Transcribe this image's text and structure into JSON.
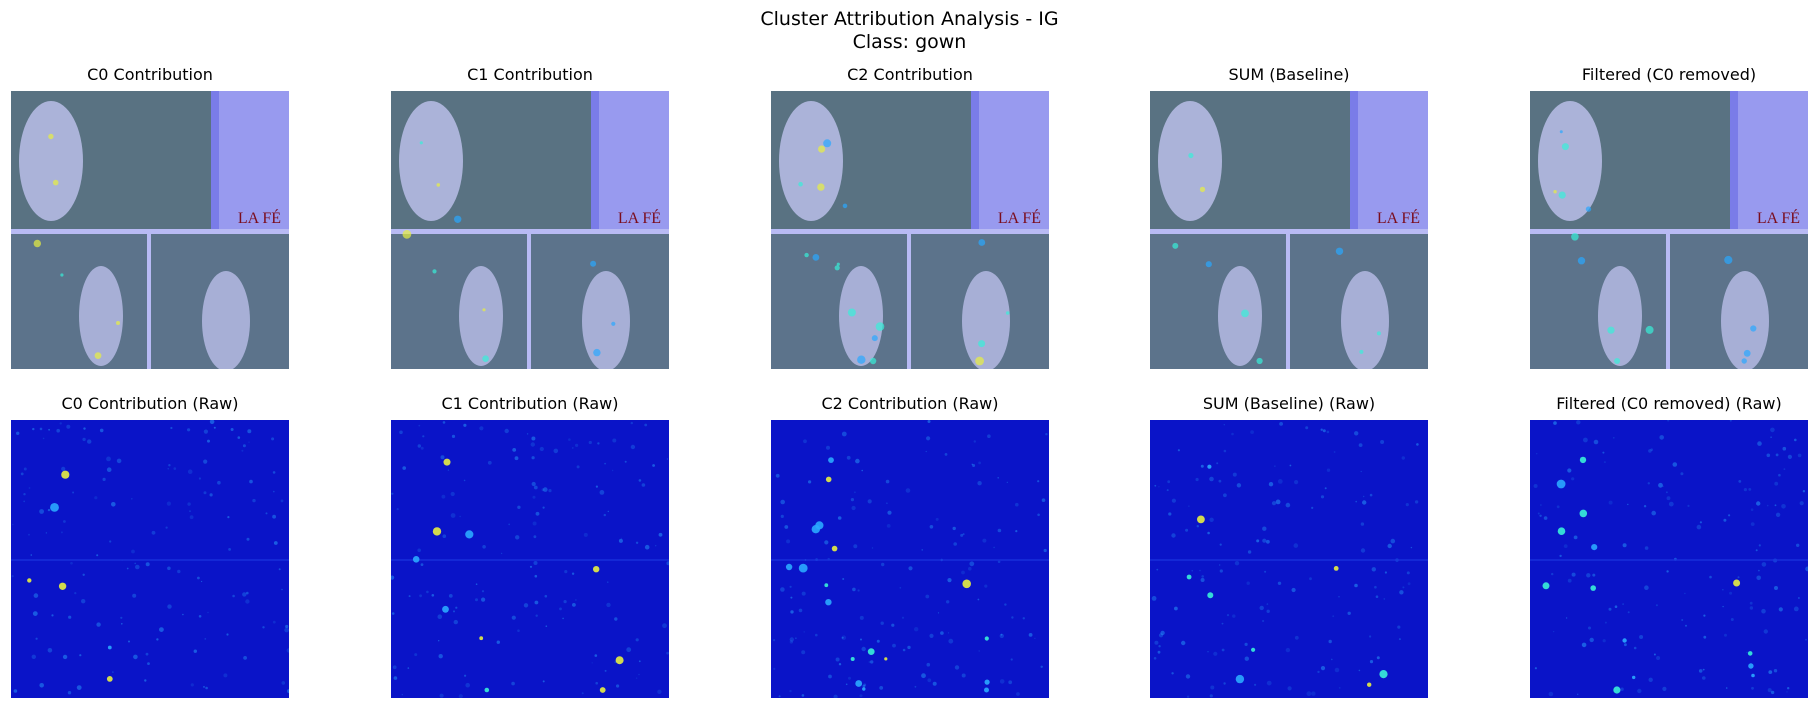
{
  "figure": {
    "title_line1": "Cluster Attribution Analysis - IG",
    "title_line2": "Class: gown"
  },
  "chart_data": {
    "type": "heatmap",
    "title": "Cluster Attribution Analysis - IG",
    "subtitle": "Class: gown",
    "colormap": "jet",
    "panels": [
      {
        "row": "overlay",
        "title": "C0 Contribution",
        "hotspots": 6
      },
      {
        "row": "overlay",
        "title": "C1 Contribution",
        "hotspots": 10
      },
      {
        "row": "overlay",
        "title": "C2 Contribution",
        "hotspots": 18
      },
      {
        "row": "overlay",
        "title": "SUM (Baseline)",
        "hotspots": 9
      },
      {
        "row": "overlay",
        "title": "Filtered (C0 removed)",
        "hotspots": 14
      },
      {
        "row": "raw",
        "title": "C0 Contribution (Raw)",
        "hotspots": 6
      },
      {
        "row": "raw",
        "title": "C1 Contribution (Raw)",
        "hotspots": 10
      },
      {
        "row": "raw",
        "title": "C2 Contribution (Raw)",
        "hotspots": 18
      },
      {
        "row": "raw",
        "title": "SUM (Baseline) (Raw)",
        "hotspots": 9
      },
      {
        "row": "raw",
        "title": "Filtered (C0 removed) (Raw)",
        "hotspots": 14
      }
    ],
    "overlay_watermark": "LA FÉ",
    "colors": {
      "raw_background": "#0a14c8",
      "overlay_tint": "#7a7ce8",
      "hot_low": "#2aa8ff",
      "hot_mid": "#38f0d8",
      "hot_high": "#e8f040",
      "foliage": "#3e6a2e"
    }
  }
}
